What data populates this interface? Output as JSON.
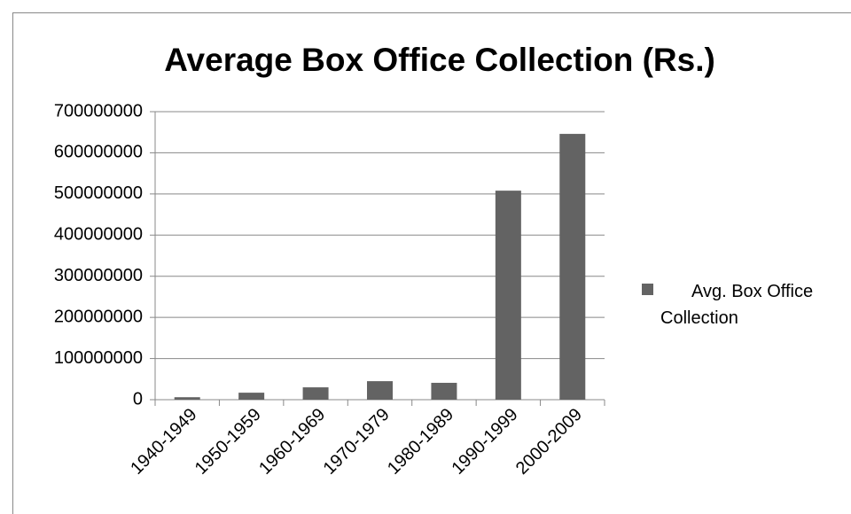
{
  "chart_data": {
    "type": "bar",
    "title": "Average Box Office Collection (Rs.)",
    "categories": [
      "1940-1949",
      "1950-1959",
      "1960-1969",
      "1970-1979",
      "1980-1989",
      "1990-1999",
      "2000-2009"
    ],
    "series": [
      {
        "name": "Avg. Box Office Collection",
        "color": "#636363",
        "values": [
          6000000,
          17000000,
          30000000,
          45000000,
          41000000,
          508000000,
          646000000
        ]
      }
    ],
    "ylim": [
      0,
      700000000
    ],
    "yticks": [
      0,
      100000000,
      200000000,
      300000000,
      400000000,
      500000000,
      600000000,
      700000000
    ],
    "grid": true,
    "legend": "right"
  }
}
